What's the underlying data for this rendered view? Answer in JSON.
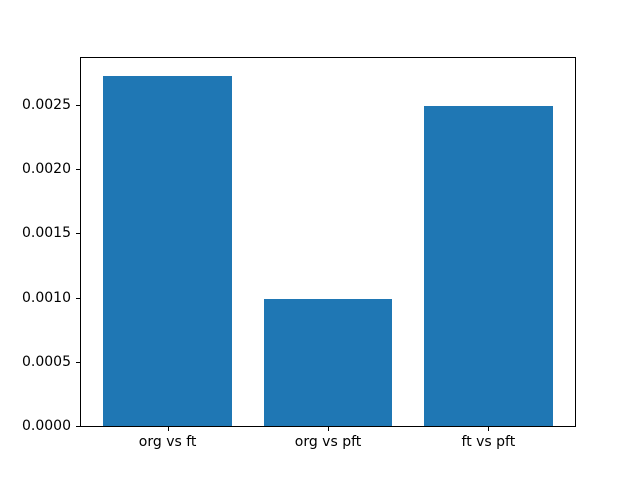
{
  "chart_data": {
    "type": "bar",
    "title": "",
    "xlabel": "",
    "ylabel": "",
    "categories": [
      "org vs ft",
      "org vs pft",
      "ft vs pft"
    ],
    "values": [
      0.00273,
      0.00099,
      0.00249
    ],
    "bar_color": "#1f77b4",
    "bar_width_fraction": 0.8,
    "ylim": [
      0,
      0.002867
    ],
    "yticks": [
      "0.0000",
      "0.0005",
      "0.0010",
      "0.0015",
      "0.0020",
      "0.0025"
    ],
    "grid": false,
    "legend": false,
    "background_color": "#ffffff",
    "spine_color": "#000000",
    "text_color": "#000000"
  }
}
